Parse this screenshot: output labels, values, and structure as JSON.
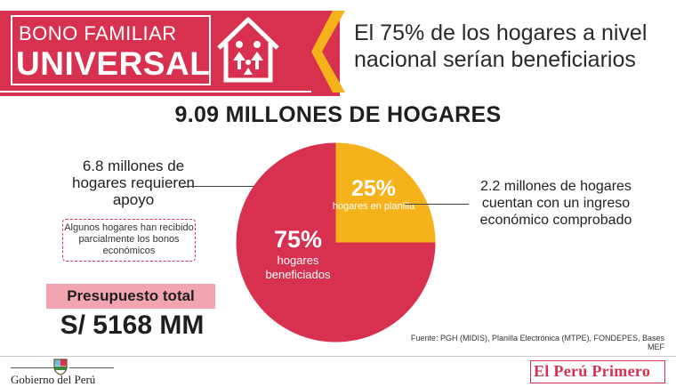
{
  "banner": {
    "line1": "BONO FAMILIAR",
    "line2": "UNIVERSAL",
    "headline": "El 75% de los hogares a nivel nacional serían beneficiarios"
  },
  "title": "9.09 MILLONES DE HOGARES",
  "left_annotation": {
    "text": "6.8 millones de hogares requieren apoyo",
    "note": "Algunos hogares han recibido parcialmente los bonos económicos"
  },
  "right_annotation": {
    "text": "2.2 millones de hogares cuentan con un ingreso económico comprobado"
  },
  "budget": {
    "label": "Presupuesto total",
    "value": "S/ 5168 MM"
  },
  "source": "Fuente: PGH (MIDIS), Planilla Electrónica (MTPE), FONDEPES, Bases MEF",
  "footer": {
    "gobierno": "Gobierno del Perú",
    "brand": "El Perú Primero"
  },
  "colors": {
    "primary": "#d8314f",
    "secondary": "#f6b21b",
    "pill": "#f2a5b1"
  },
  "chart_data": {
    "type": "pie",
    "title": "9.09 MILLONES DE HOGARES",
    "slices": [
      {
        "pct_label": "75%",
        "label": "hogares beneficiados",
        "value": 75,
        "color": "#d8314f"
      },
      {
        "pct_label": "25%",
        "label": "hogares en planilla",
        "value": 25,
        "color": "#f6b21b"
      }
    ]
  }
}
